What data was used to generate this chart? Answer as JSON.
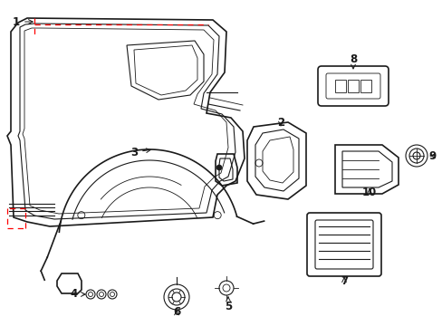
{
  "bg_color": "#ffffff",
  "line_color": "#1a1a1a",
  "red_color": "#ff0000",
  "fig_width": 4.89,
  "fig_height": 3.6,
  "dpi": 100
}
